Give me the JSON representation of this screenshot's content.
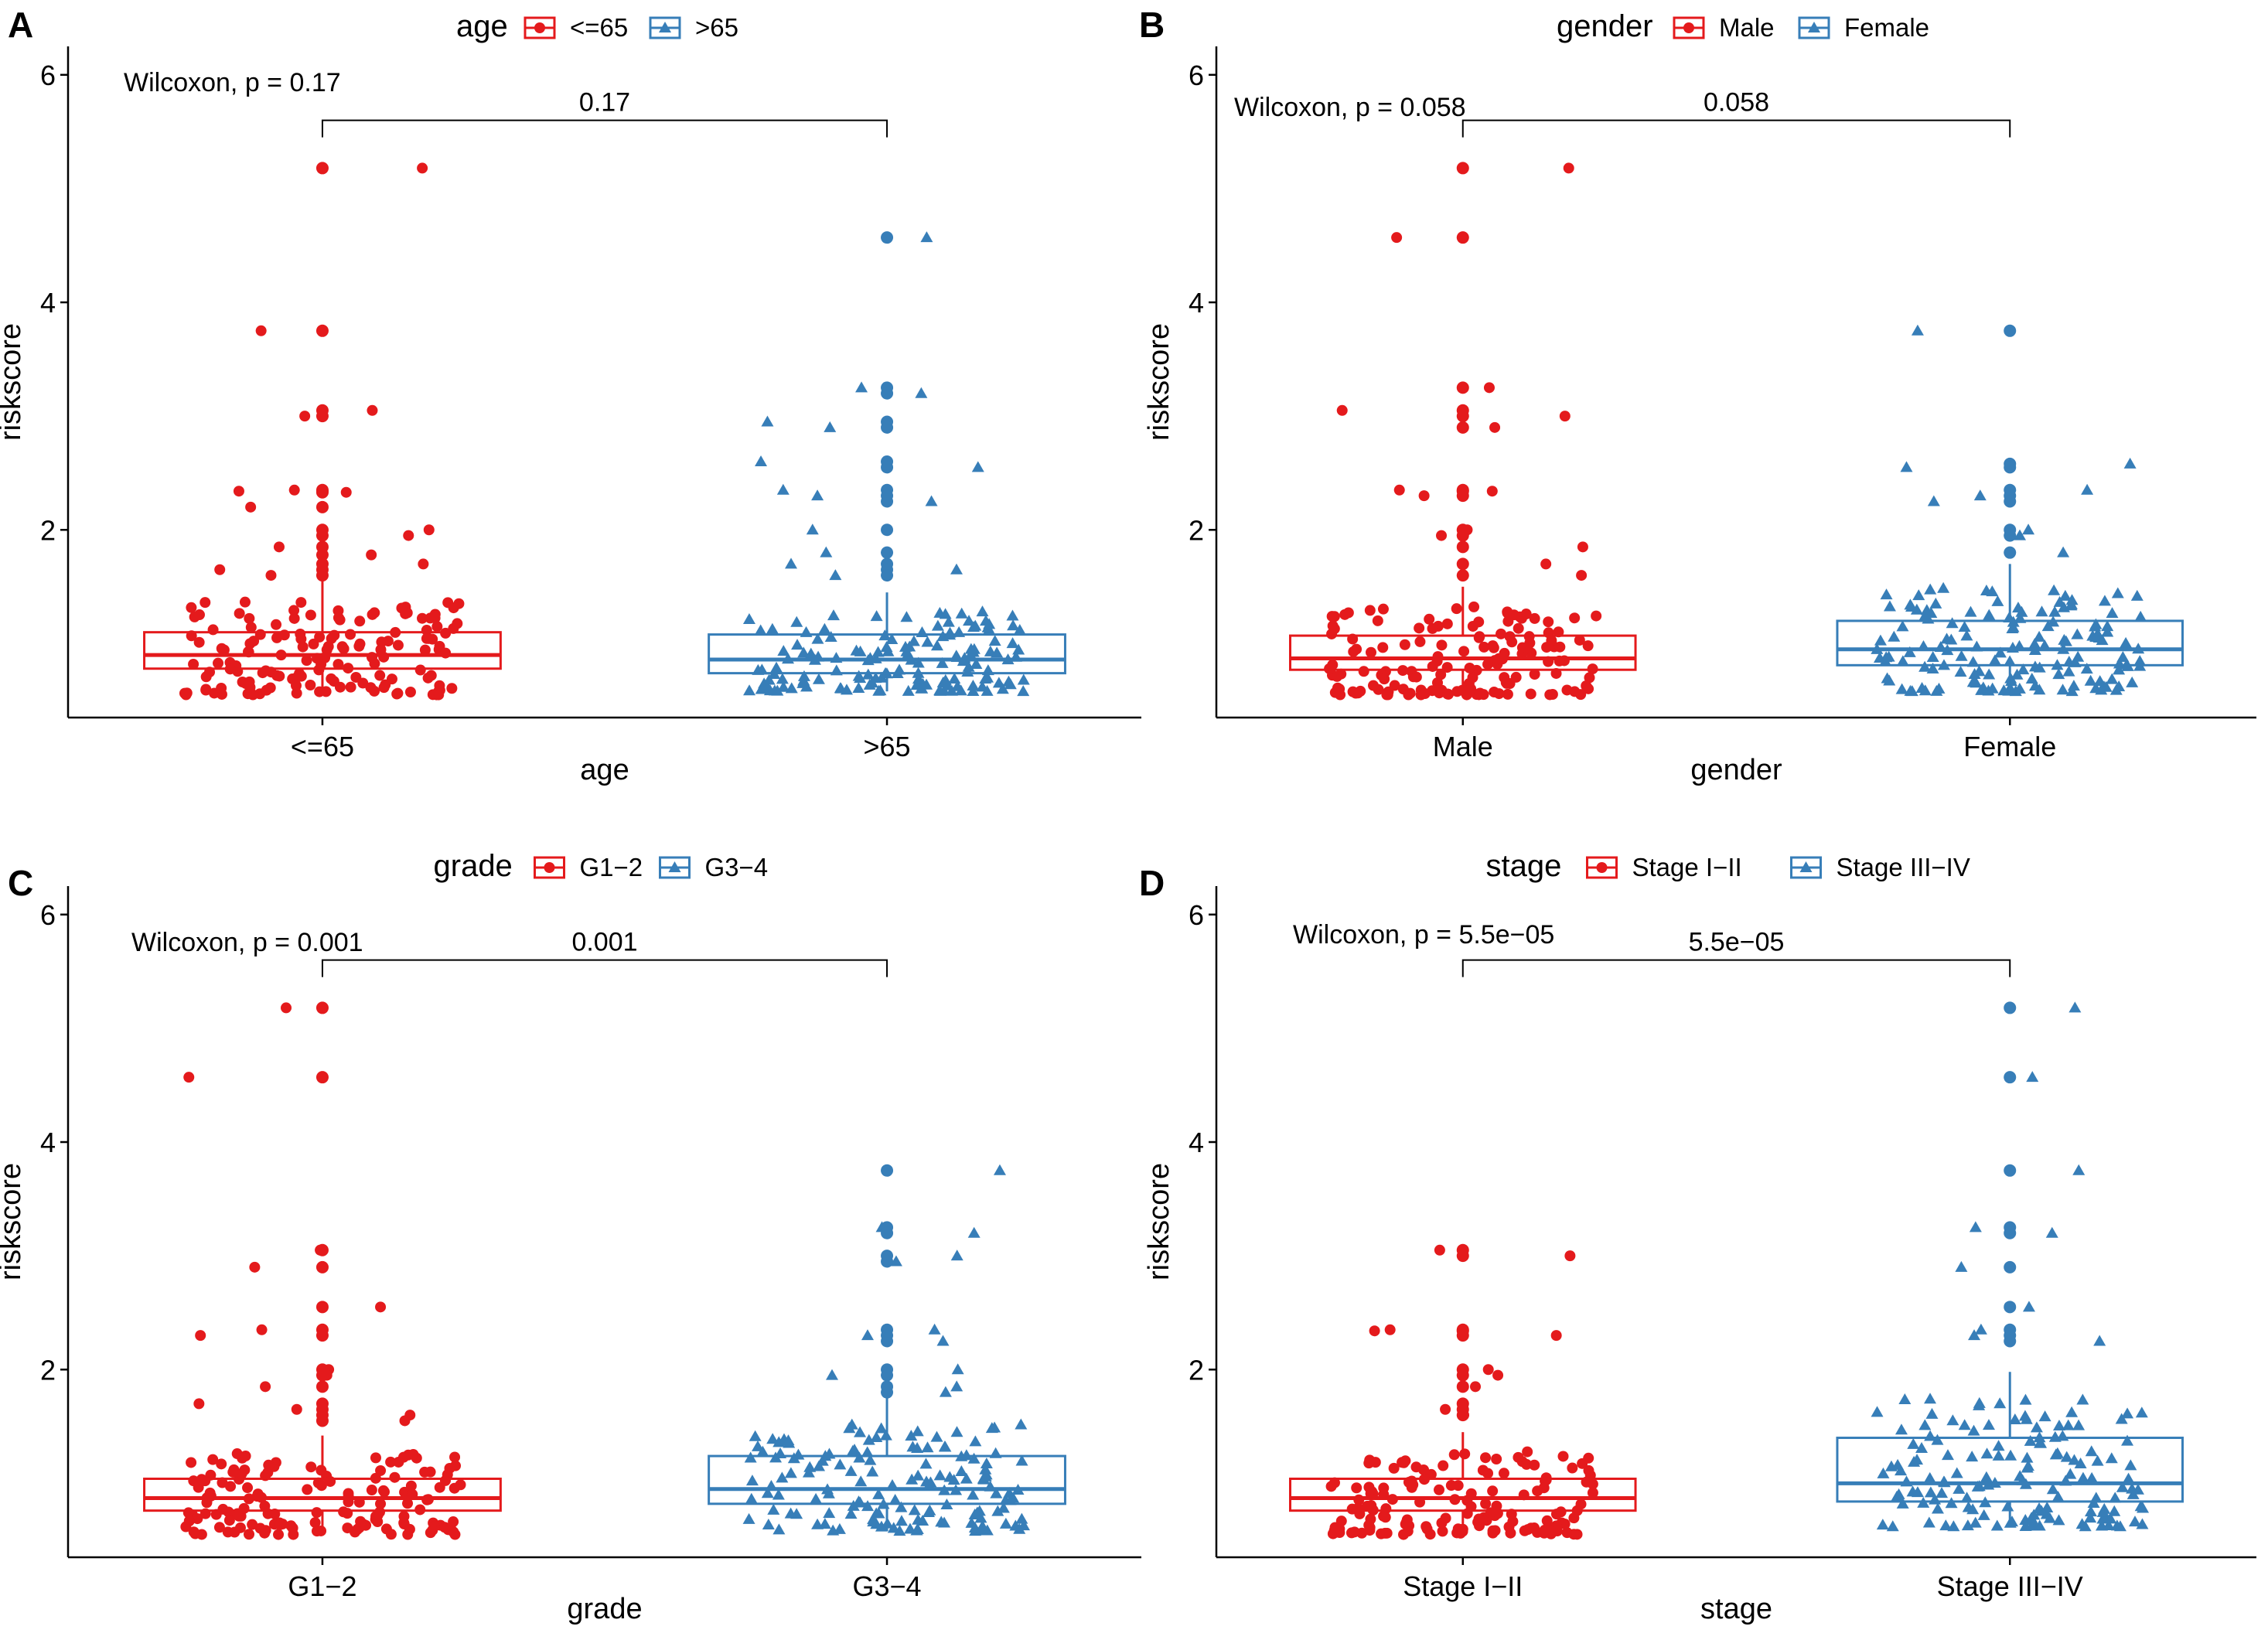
{
  "figure": {
    "colors": {
      "group1": "#E41A1C",
      "group2": "#377EB8",
      "axis": "#000000"
    }
  },
  "chart_data": [
    {
      "panel": "A",
      "type": "boxplot",
      "title": "",
      "xlabel": "age",
      "ylabel": "riskscore",
      "ylim": [
        0.35,
        6.25
      ],
      "yticks": [
        "2",
        "4",
        "6"
      ],
      "legend": {
        "title": "age",
        "entries": [
          "<=65",
          ">65"
        ],
        "placement": "top"
      },
      "test": "Wilcoxon, p = 0.17",
      "bracket_label": "0.17",
      "categories": [
        "<=65",
        ">65"
      ],
      "series": [
        {
          "name": "<=65",
          "box": {
            "q1": 0.78,
            "median": 0.9,
            "q3": 1.1,
            "whisker_low": 0.55,
            "whisker_high": 1.55
          },
          "outliers": [
            5.18,
            3.75,
            3.05,
            3.0,
            2.35,
            2.34,
            2.33,
            2.2,
            2.0,
            1.95,
            1.85,
            1.78,
            1.7,
            1.65,
            1.6
          ]
        },
        {
          "name": ">65",
          "box": {
            "q1": 0.74,
            "median": 0.86,
            "q3": 1.08,
            "whisker_low": 0.58,
            "whisker_high": 1.45
          },
          "outliers": [
            4.57,
            3.25,
            3.2,
            2.95,
            2.9,
            2.6,
            2.55,
            2.35,
            2.3,
            2.25,
            2.0,
            1.8,
            1.7,
            1.65,
            1.6
          ]
        }
      ]
    },
    {
      "panel": "B",
      "type": "boxplot",
      "title": "",
      "xlabel": "gender",
      "ylabel": "riskscore",
      "ylim": [
        0.35,
        6.25
      ],
      "yticks": [
        "2",
        "4",
        "6"
      ],
      "legend": {
        "title": "gender",
        "entries": [
          "Male",
          "Female"
        ],
        "placement": "top"
      },
      "test": "Wilcoxon, p = 0.058",
      "bracket_label": "0.058",
      "categories": [
        "Male",
        "Female"
      ],
      "series": [
        {
          "name": "Male",
          "box": {
            "q1": 0.77,
            "median": 0.87,
            "q3": 1.07,
            "whisker_low": 0.55,
            "whisker_high": 1.5
          },
          "outliers": [
            5.18,
            4.57,
            3.25,
            3.05,
            3.0,
            2.9,
            2.35,
            2.34,
            2.3,
            2.0,
            1.95,
            1.85,
            1.7,
            1.6
          ]
        },
        {
          "name": "Female",
          "box": {
            "q1": 0.81,
            "median": 0.95,
            "q3": 1.2,
            "whisker_low": 0.58,
            "whisker_high": 1.7
          },
          "outliers": [
            3.75,
            2.58,
            2.55,
            2.35,
            2.3,
            2.25,
            2.0,
            1.95,
            1.8
          ]
        }
      ]
    },
    {
      "panel": "C",
      "type": "boxplot",
      "title": "",
      "xlabel": "grade",
      "ylabel": "riskscore",
      "ylim": [
        0.35,
        6.25
      ],
      "yticks": [
        "2",
        "4",
        "6"
      ],
      "legend": {
        "title": "grade",
        "entries": [
          "G1−2",
          "G3−4"
        ],
        "placement": "top"
      },
      "test": "Wilcoxon, p = 0.001",
      "bracket_label": "0.001",
      "categories": [
        "G1−2",
        "G3−4"
      ],
      "series": [
        {
          "name": "G1−2",
          "box": {
            "q1": 0.76,
            "median": 0.87,
            "q3": 1.04,
            "whisker_low": 0.55,
            "whisker_high": 1.42
          },
          "outliers": [
            5.18,
            4.57,
            3.05,
            2.9,
            2.55,
            2.35,
            2.3,
            2.0,
            1.95,
            1.85,
            1.7,
            1.65,
            1.6,
            1.55
          ]
        },
        {
          "name": "G3−4",
          "box": {
            "q1": 0.82,
            "median": 0.95,
            "q3": 1.24,
            "whisker_low": 0.58,
            "whisker_high": 1.75
          },
          "outliers": [
            3.75,
            3.25,
            3.2,
            3.0,
            2.95,
            2.35,
            2.3,
            2.25,
            2.0,
            1.95,
            1.85,
            1.8
          ]
        }
      ]
    },
    {
      "panel": "D",
      "type": "boxplot",
      "title": "",
      "xlabel": "stage",
      "ylabel": "riskscore",
      "ylim": [
        0.35,
        6.25
      ],
      "yticks": [
        "2",
        "4",
        "6"
      ],
      "legend": {
        "title": "stage",
        "entries": [
          "Stage I−II",
          "Stage III−IV"
        ],
        "placement": "top"
      },
      "test": "Wilcoxon, p = 5.5e−05",
      "bracket_label": "5.5e−05",
      "categories": [
        "Stage I−II",
        "Stage III−IV"
      ],
      "series": [
        {
          "name": "Stage I−II",
          "box": {
            "q1": 0.76,
            "median": 0.87,
            "q3": 1.04,
            "whisker_low": 0.55,
            "whisker_high": 1.45
          },
          "outliers": [
            3.05,
            3.0,
            2.35,
            2.34,
            2.3,
            2.0,
            1.95,
            1.85,
            1.7,
            1.65,
            1.6
          ]
        },
        {
          "name": "Stage III−IV",
          "box": {
            "q1": 0.84,
            "median": 1.0,
            "q3": 1.4,
            "whisker_low": 0.62,
            "whisker_high": 1.98
          },
          "outliers": [
            5.18,
            4.57,
            3.75,
            3.25,
            3.2,
            2.9,
            2.55,
            2.35,
            2.3,
            2.25
          ]
        }
      ]
    }
  ]
}
